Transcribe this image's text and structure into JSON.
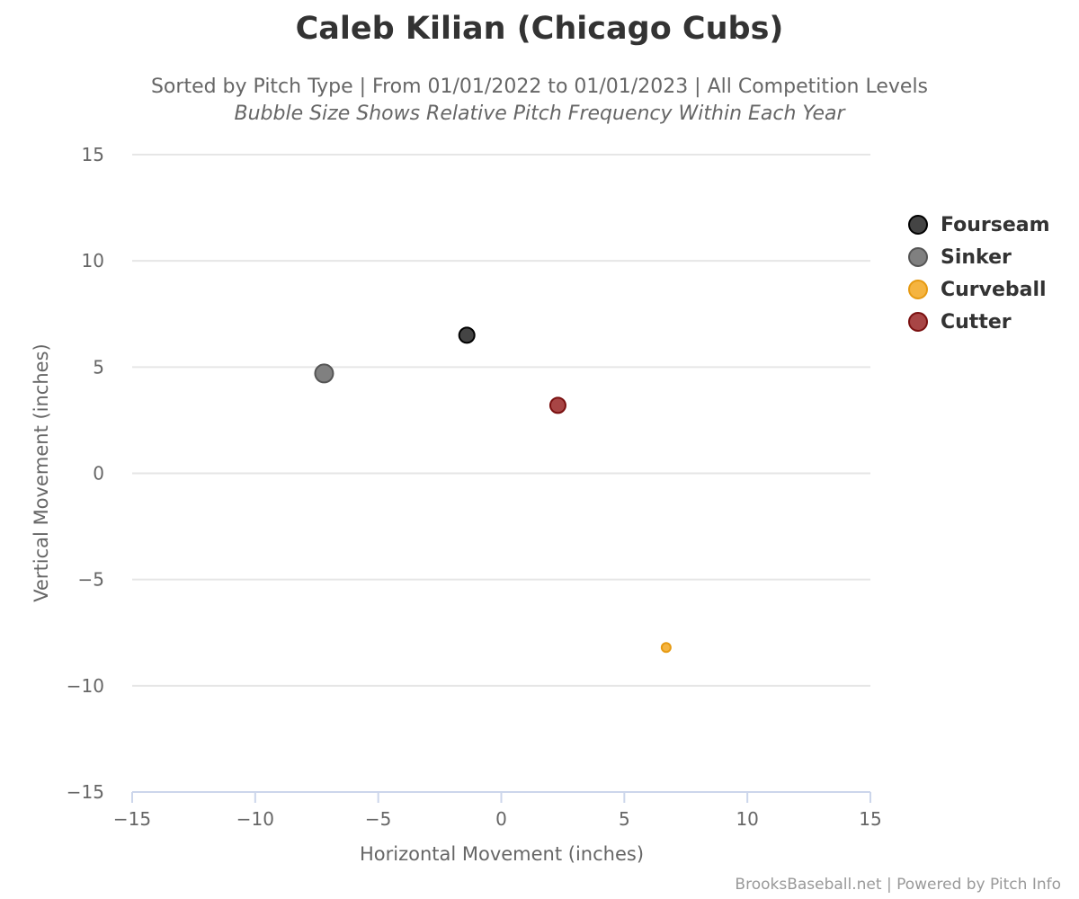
{
  "chart_data": {
    "type": "scatter",
    "title": "Caleb Kilian (Chicago Cubs)",
    "subtitle": "Sorted by Pitch Type | From 01/01/2022 to 01/01/2023 | All Competition Levels",
    "subtitle2": "Bubble Size Shows Relative Pitch Frequency Within Each Year",
    "xlabel": "Horizontal Movement (inches)",
    "ylabel": "Vertical Movement (inches)",
    "xlim": [
      -15,
      15
    ],
    "ylim": [
      -15,
      15
    ],
    "x_ticks": [
      "−15",
      "−10",
      "−5",
      "0",
      "5",
      "10",
      "15"
    ],
    "y_ticks": [
      "15",
      "10",
      "5",
      "0",
      "−5",
      "−10",
      "−15"
    ],
    "grid": "horizontal",
    "legend_position": "right",
    "series": [
      {
        "name": "Fourseam",
        "color": "#444444",
        "stroke": "#000000",
        "x": -1.4,
        "y": 6.5,
        "relative_size": 0.55
      },
      {
        "name": "Sinker",
        "color": "#808080",
        "stroke": "#555555",
        "x": -7.2,
        "y": 4.7,
        "relative_size": 0.7
      },
      {
        "name": "Curveball",
        "color": "#F5B440",
        "stroke": "#E69A12",
        "x": 6.7,
        "y": -8.2,
        "relative_size": 0.2
      },
      {
        "name": "Cutter",
        "color": "#A84545",
        "stroke": "#7A1010",
        "x": 2.3,
        "y": 3.2,
        "relative_size": 0.55
      }
    ]
  },
  "credits": "BrooksBaseball.net | Powered by Pitch Info"
}
